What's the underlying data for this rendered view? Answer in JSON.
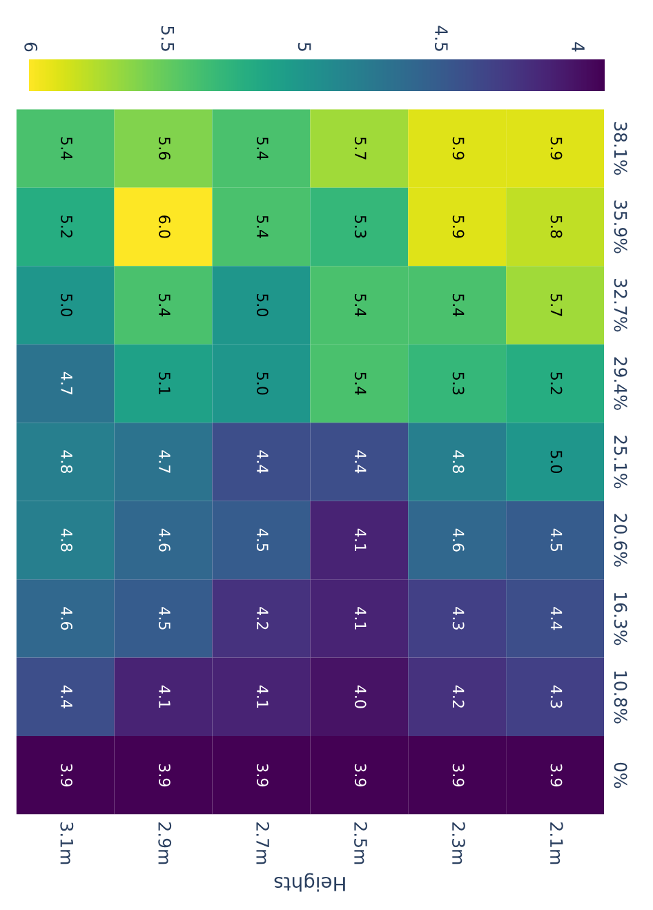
{
  "chart_data": {
    "type": "heatmap",
    "xlabel": "Heights",
    "categories": [
      "3.1m",
      "2.9m",
      "2.7m",
      "2.5m",
      "2.3m",
      "2.1m"
    ],
    "y_categories": [
      "38.1%",
      "35.9%",
      "32.7%",
      "29.4%",
      "25.1%",
      "20.6%",
      "16.3%",
      "10.8%",
      "0%"
    ],
    "cells": [
      [
        5.4,
        5.6,
        5.4,
        5.7,
        5.9,
        5.9
      ],
      [
        5.2,
        6.0,
        5.4,
        5.3,
        5.9,
        5.8
      ],
      [
        5.0,
        5.4,
        5.0,
        5.4,
        5.4,
        5.7
      ],
      [
        4.7,
        5.1,
        5.0,
        5.4,
        5.3,
        5.2
      ],
      [
        4.8,
        4.7,
        4.4,
        4.4,
        4.8,
        5.0
      ],
      [
        4.8,
        4.6,
        4.5,
        4.1,
        4.6,
        4.5
      ],
      [
        4.6,
        4.5,
        4.2,
        4.1,
        4.3,
        4.4
      ],
      [
        4.4,
        4.1,
        4.1,
        4.0,
        4.2,
        4.3
      ],
      [
        3.9,
        3.9,
        3.9,
        3.9,
        3.9,
        3.9
      ]
    ],
    "cell_labels": [
      [
        "5.4",
        "5.6",
        "5.4",
        "5.7",
        "5.9",
        "5.9"
      ],
      [
        "5.2",
        "6.0",
        "5.4",
        "5.3",
        "5.9",
        "5.8"
      ],
      [
        "5.0",
        "5.4",
        "5.0",
        "5.4",
        "5.4",
        "5.7"
      ],
      [
        "4.7",
        "5.1",
        "5.0",
        "5.4",
        "5.3",
        "5.2"
      ],
      [
        "4.8",
        "4.7",
        "4.4",
        "4.4",
        "4.8",
        "5.0"
      ],
      [
        "4.8",
        "4.6",
        "4.5",
        "4.1",
        "4.6",
        "4.5"
      ],
      [
        "4.6",
        "4.5",
        "4.2",
        "4.1",
        "4.3",
        "4.4"
      ],
      [
        "4.4",
        "4.1",
        "4.1",
        "4.0",
        "4.2",
        "4.3"
      ],
      [
        "3.9",
        "3.9",
        "3.9",
        "3.9",
        "3.9",
        "3.9"
      ]
    ],
    "data_labels": true,
    "clim": [
      3.9,
      6.0
    ],
    "cticks": [
      4,
      4.5,
      5,
      5.5,
      6
    ]
  }
}
